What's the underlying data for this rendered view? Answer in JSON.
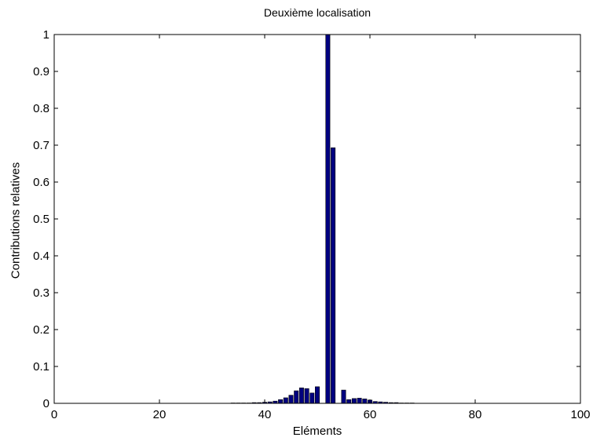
{
  "chart_data": {
    "type": "bar",
    "title": "Deuxième localisation",
    "xlabel": "Eléments",
    "ylabel": "Contributions relatives",
    "xlim": [
      0,
      100
    ],
    "ylim": [
      0,
      1
    ],
    "x_ticks": [
      "0",
      "20",
      "40",
      "60",
      "80",
      "100"
    ],
    "y_ticks": [
      "0",
      "0.1",
      "0.2",
      "0.3",
      "0.4",
      "0.5",
      "0.6",
      "0.7",
      "0.8",
      "0.9",
      "1"
    ],
    "grid": false,
    "bar_color": "#000080",
    "series": [
      {
        "x": [
          34,
          35,
          36,
          37,
          38,
          39,
          40,
          41,
          42,
          43,
          44,
          45,
          46,
          47,
          48,
          49,
          50,
          51,
          52,
          53,
          54,
          55,
          56,
          57,
          58,
          59,
          60,
          61,
          62,
          63,
          64,
          65,
          66,
          67,
          68
        ],
        "values": [
          0.001,
          0.001,
          0.001,
          0.001,
          0.002,
          0.002,
          0.003,
          0.004,
          0.006,
          0.01,
          0.015,
          0.022,
          0.034,
          0.042,
          0.04,
          0.028,
          0.045,
          0,
          1.0,
          0.693,
          0,
          0.036,
          0.01,
          0.013,
          0.014,
          0.012,
          0.009,
          0.005,
          0.004,
          0.003,
          0.002,
          0.002,
          0.001,
          0.001,
          0.001
        ]
      }
    ]
  }
}
